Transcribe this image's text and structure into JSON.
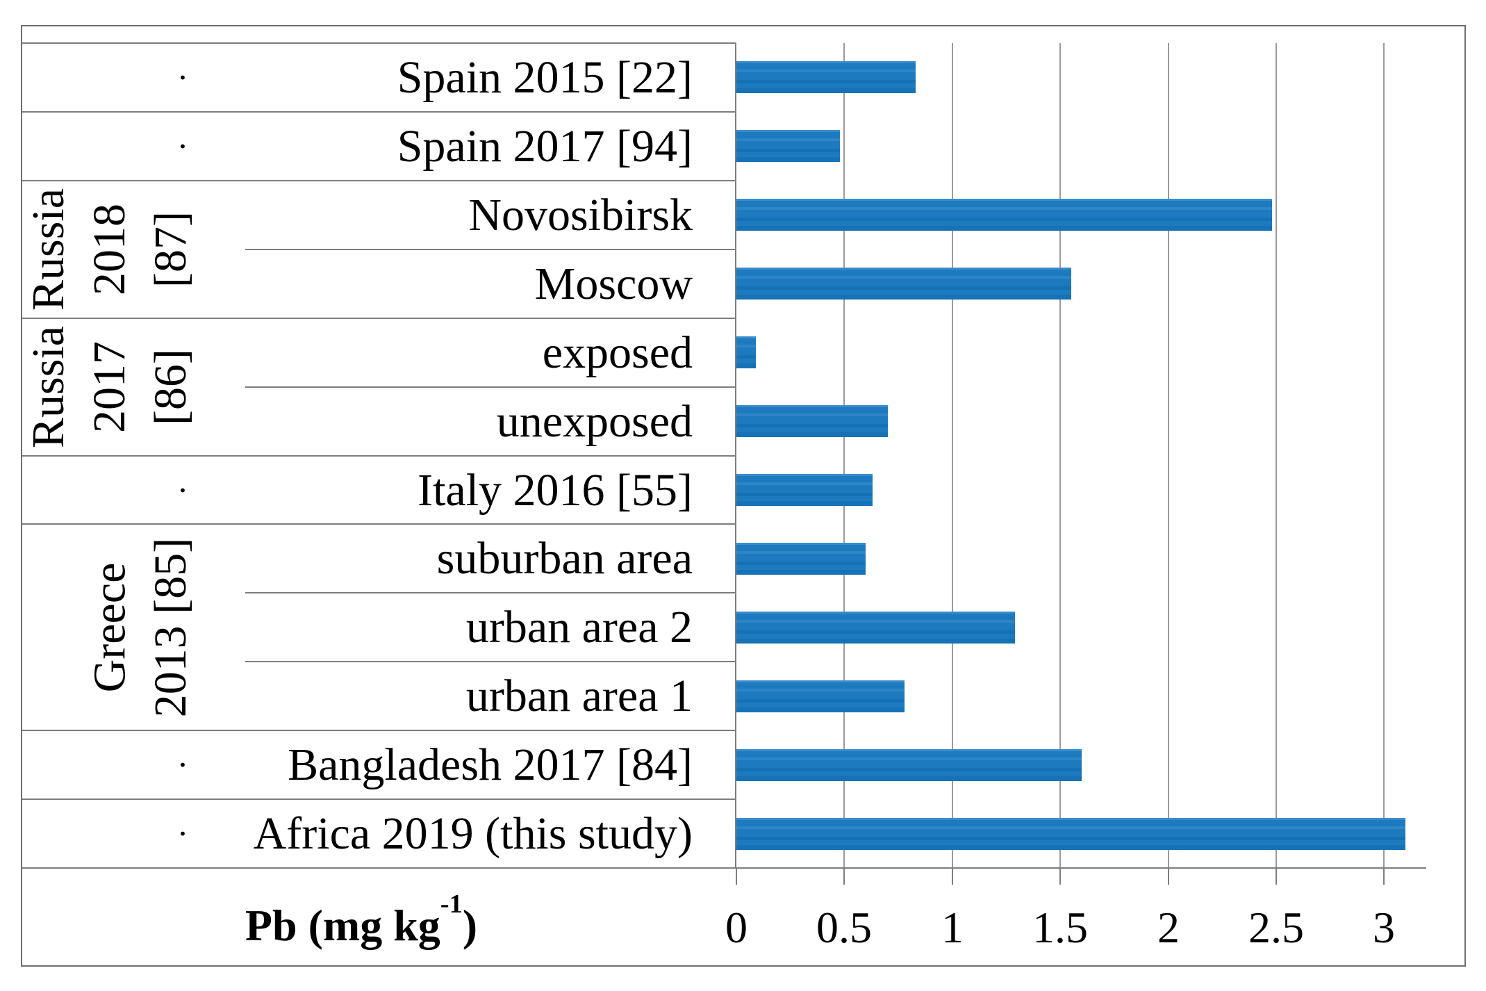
{
  "chart_data": {
    "type": "bar",
    "orientation": "horizontal",
    "title": "",
    "xlabel": "Pb (mg kg-1)",
    "xlabel_base": "Pb (mg kg",
    "xlabel_sup": "-1",
    "xlabel_close": ")",
    "categories": [
      "Spain 2015 [22]",
      "Spain 2017 [94]",
      "Novosibirsk",
      "Moscow",
      "exposed",
      "unexposed",
      "Italy 2016 [55]",
      "suburban area",
      "urban area 2",
      "urban area 1",
      "Bangladesh 2017 [84]",
      "Africa 2019 (this study)"
    ],
    "values": [
      0.83,
      0.48,
      2.48,
      1.55,
      0.09,
      0.7,
      0.63,
      0.6,
      1.29,
      0.78,
      1.6,
      3.1
    ],
    "x_ticks": [
      "0",
      "0.5",
      "1",
      "1.5",
      "2",
      "2.5",
      "3"
    ],
    "x_tick_step": 0.5,
    "xlim": [
      0,
      3.2
    ],
    "grid": "vertical",
    "legend": "none",
    "groups": [
      {
        "label": "Russia",
        "year_ref_lines": [
          "2018",
          "[87]"
        ],
        "lines": [
          "Russia",
          "2018",
          "[87]"
        ],
        "rows": [
          2,
          3
        ]
      },
      {
        "label": "Russia",
        "year_ref_lines": [
          "2017",
          "[86]"
        ],
        "lines": [
          "Russia",
          "2017",
          "[86]"
        ],
        "rows": [
          4,
          5
        ]
      },
      {
        "label": "Greece",
        "year_ref_lines": [
          "2013 [85]"
        ],
        "lines": [
          "Greece",
          "2013 [85]"
        ],
        "rows": [
          7,
          8,
          9
        ]
      }
    ],
    "dot_char": "·",
    "bar_color": "#1d7abf",
    "line_color": "#7d7d7d",
    "gridline_color": "#9a9a9a"
  }
}
